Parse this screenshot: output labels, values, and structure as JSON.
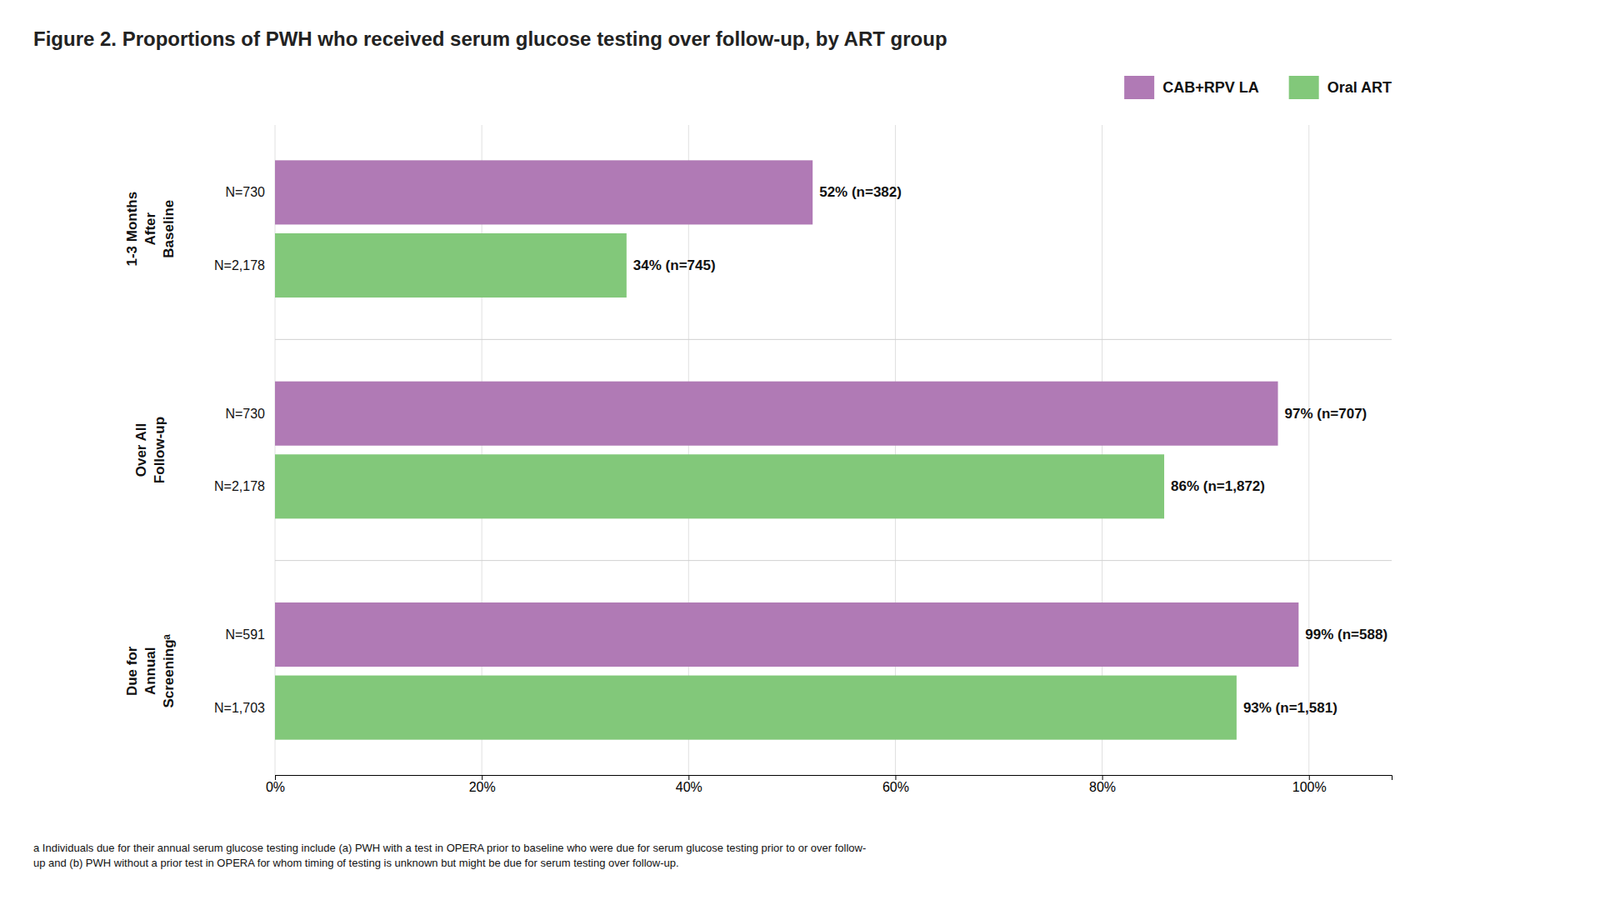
{
  "chart_data": {
    "type": "bar",
    "orientation": "horizontal",
    "title": "Figure 2. Proportions of PWH who received serum glucose testing over follow-up, by ART group",
    "categories": [
      "1-3 Months\nAfter\nBaseline",
      "Over All\nFollow-up",
      "Due for\nAnnual\nScreeningᵃ"
    ],
    "series": [
      {
        "name": "CAB+RPV LA",
        "color": "#B07AB5",
        "values": [
          52,
          97,
          99
        ],
        "value_labels": [
          "52% (n=382)",
          "97% (n=707)",
          "99% (n=588)"
        ],
        "bar_labels": [
          "N=730",
          "N=730",
          "N=591"
        ]
      },
      {
        "name": "Oral ART",
        "color": "#82C87A",
        "values": [
          34,
          86,
          93
        ],
        "value_labels": [
          "34% (n=745)",
          "86% (n=1,872)",
          "93% (n=1,581)"
        ],
        "bar_labels": [
          "N=2,178",
          "N=2,178",
          "N=1,703"
        ]
      }
    ],
    "xlim": [
      0,
      108
    ],
    "xticks": [
      {
        "value": 0,
        "label": "0%"
      },
      {
        "value": 20,
        "label": "20%"
      },
      {
        "value": 40,
        "label": "40%"
      },
      {
        "value": 60,
        "label": "60%"
      },
      {
        "value": 80,
        "label": "80%"
      },
      {
        "value": 100,
        "label": "100%"
      }
    ],
    "grid": true,
    "legend": "upper right",
    "data_labels": true,
    "footnote": "a Individuals due for their annual serum glucose testing include (a) PWH with a test in OPERA prior to baseline who were due for serum glucose testing prior to or over follow-\nup and (b) PWH without a prior test in OPERA for whom timing of testing is unknown but might be due for serum testing over follow-up."
  }
}
